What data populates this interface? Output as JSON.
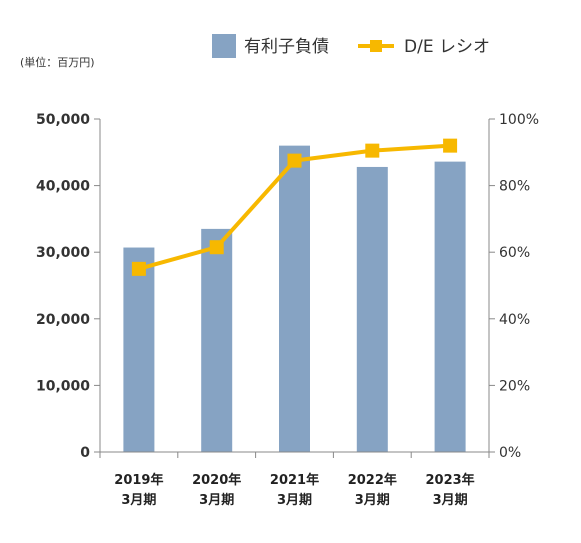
{
  "chart_data": {
    "type": "bar",
    "unit_label": "(単位：百万円)",
    "categories": [
      [
        "2019年",
        "3月期"
      ],
      [
        "2020年",
        "3月期"
      ],
      [
        "2021年",
        "3月期"
      ],
      [
        "2022年",
        "3月期"
      ],
      [
        "2023年",
        "3月期"
      ]
    ],
    "series": [
      {
        "name": "有利子負債",
        "type": "bar",
        "axis": "left",
        "color": "#86a3c3",
        "values": [
          30700,
          33500,
          46000,
          42800,
          43600
        ]
      },
      {
        "name": "D/E レシオ",
        "type": "line",
        "axis": "right",
        "color": "#f7b800",
        "values": [
          55,
          61.5,
          87.5,
          90.5,
          92
        ]
      }
    ],
    "left_axis": {
      "min": 0,
      "max": 50000,
      "ticks": [
        "0",
        "10,000",
        "20,000",
        "30,000",
        "40,000",
        "50,000"
      ]
    },
    "right_axis": {
      "min": 0,
      "max": 100,
      "ticks": [
        "0%",
        "20%",
        "40%",
        "60%",
        "80%",
        "100%"
      ]
    },
    "legend_position": "top-right",
    "grid": false
  }
}
